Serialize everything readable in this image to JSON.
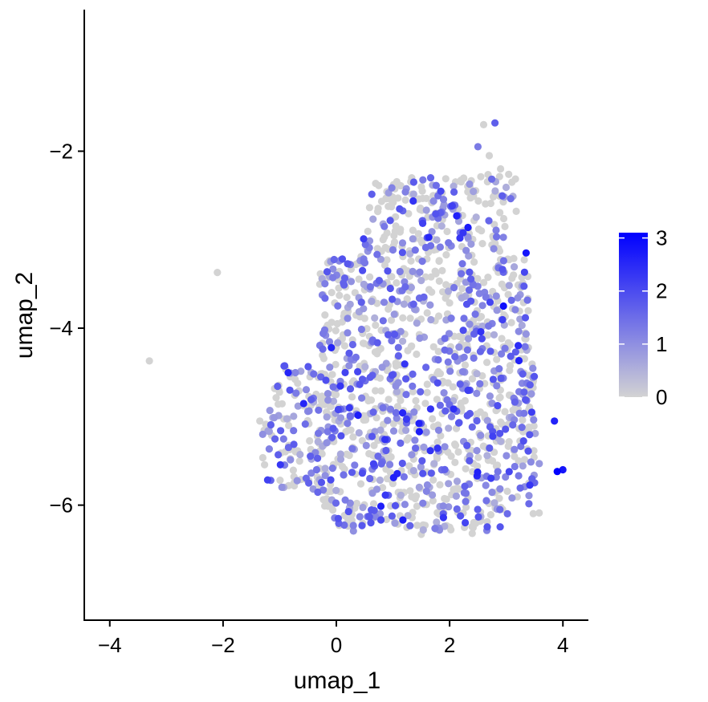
{
  "chart_data": {
    "type": "scatter",
    "xlabel": "umap_1",
    "ylabel": "umap_2",
    "xlim": [
      -4.45,
      4.45
    ],
    "ylim": [
      -7.3,
      -0.4
    ],
    "x_ticks": [
      -4,
      -2,
      0,
      2,
      4
    ],
    "y_ticks": [
      -2,
      -4,
      -6
    ],
    "x_tick_labels": [
      "−4",
      "−2",
      "0",
      "2",
      "4"
    ],
    "y_tick_labels": [
      "−2",
      "−4",
      "−6"
    ],
    "grid": false,
    "color_scale": {
      "low_color": "#d3d3d3",
      "high_color": "#0000ff",
      "min": 0,
      "max": 3.1,
      "ticks": [
        0,
        1,
        2,
        3
      ],
      "tick_labels": [
        "0",
        "1",
        "2",
        "3"
      ],
      "placement": "right"
    },
    "point_count": 1500,
    "points_description": "cells concentrated in region x 0.0 to 3.6, y -6.3 to -2.2; top arm near x 2.8, y -1.7 to -2.6; right lobe near x 3.5-4.0, y -5.2 to -6.0",
    "points": [
      {
        "x": -3.3,
        "y": -4.37,
        "v": 0
      },
      {
        "x": -2.1,
        "y": -3.37,
        "v": 0
      },
      {
        "x": 2.8,
        "y": -1.68,
        "v": 1.7
      },
      {
        "x": 2.6,
        "y": -1.7,
        "v": 0
      },
      {
        "x": 2.5,
        "y": -1.95,
        "v": 1.3
      },
      {
        "x": 2.7,
        "y": -2.05,
        "v": 0
      },
      {
        "x": 2.9,
        "y": -2.2,
        "v": 0
      },
      {
        "x": 3.1,
        "y": -2.35,
        "v": 0
      },
      {
        "x": 2.95,
        "y": -3.75,
        "v": 2.9
      },
      {
        "x": 3.35,
        "y": -3.15,
        "v": 2.8
      },
      {
        "x": 3.9,
        "y": -5.62,
        "v": 3.1
      },
      {
        "x": 4.0,
        "y": -5.6,
        "v": 2.8
      },
      {
        "x": 3.85,
        "y": -5.05,
        "v": 2.6
      },
      {
        "x": 3.45,
        "y": -4.95,
        "v": 2.2
      },
      {
        "x": -1.35,
        "y": -5.05,
        "v": 0
      },
      {
        "x": -1.3,
        "y": -5.2,
        "v": 1.0
      },
      {
        "x": 1.5,
        "y": -6.33,
        "v": 0
      },
      {
        "x": 0.3,
        "y": -6.23,
        "v": 1.2
      },
      {
        "x": 2.4,
        "y": -6.32,
        "v": 0
      }
    ]
  }
}
